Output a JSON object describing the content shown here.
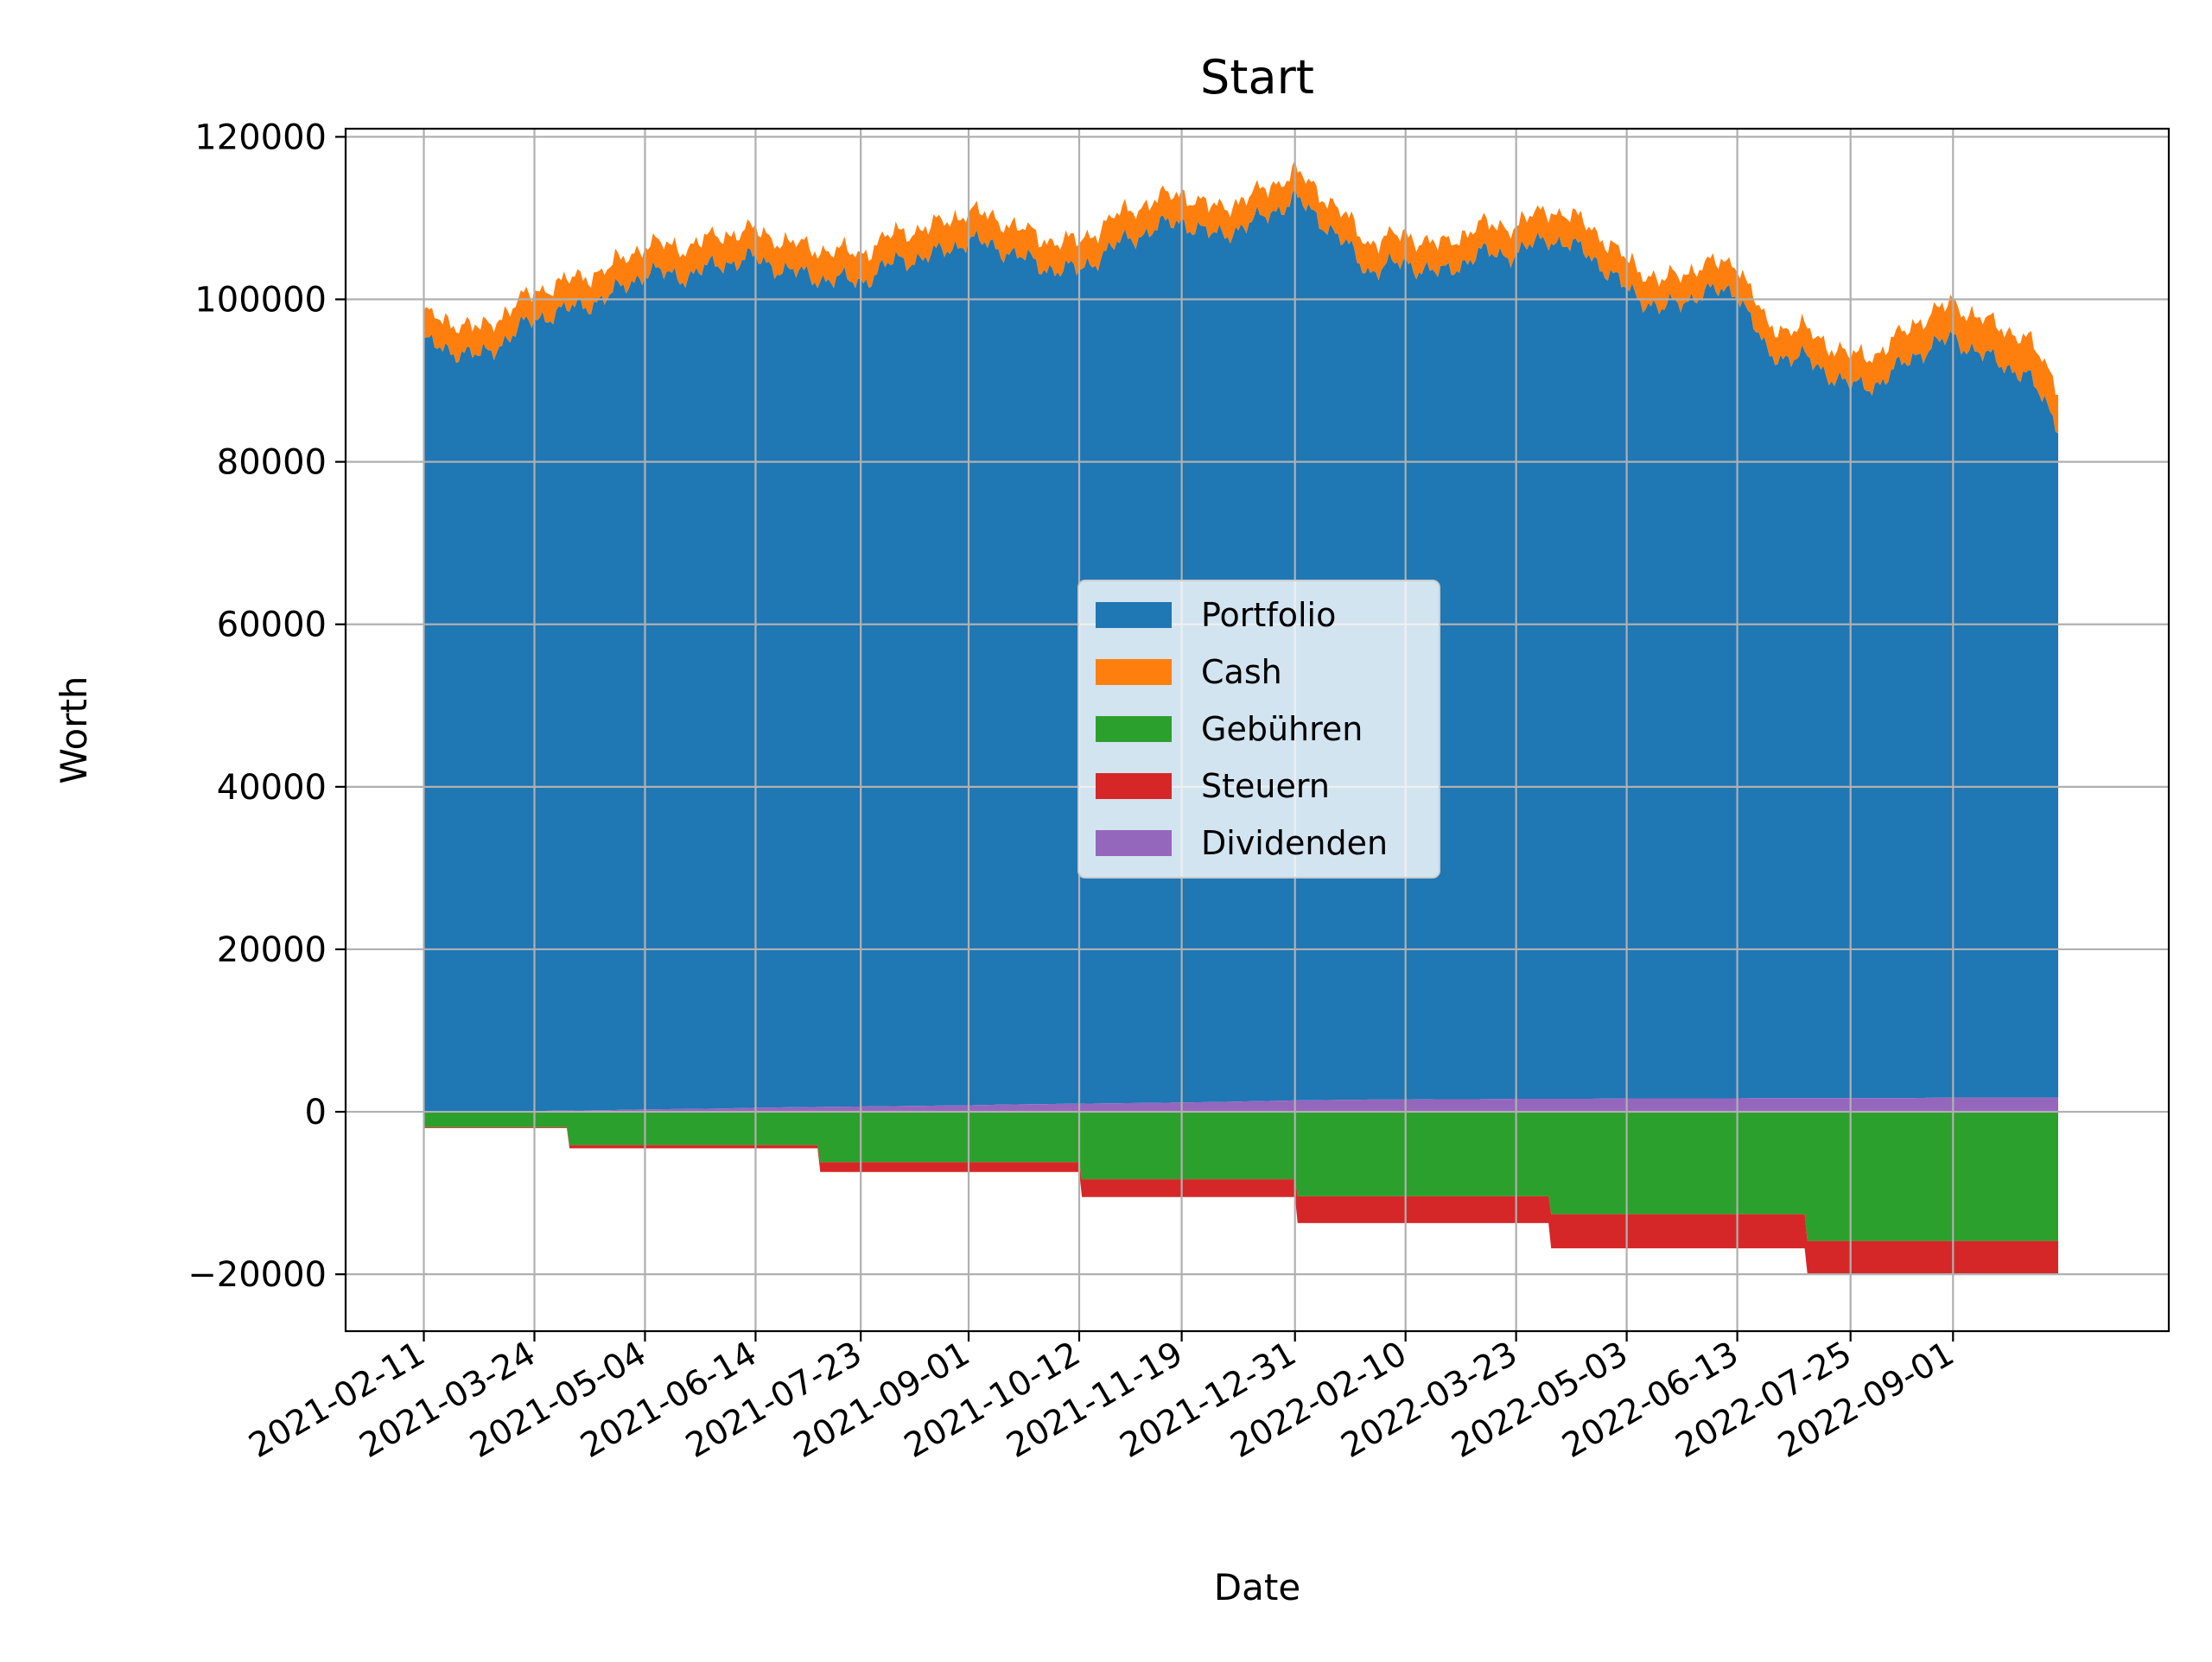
{
  "chart_data": {
    "type": "area",
    "stacked": true,
    "title": "Start",
    "xlabel": "Date",
    "ylabel": "Worth",
    "x_axis": "date",
    "xlim": [
      "2021-01-13",
      "2022-11-20"
    ],
    "ylim": [
      -27000,
      121000
    ],
    "x_ticks": [
      "2021-02-11",
      "2021-03-24",
      "2021-05-04",
      "2021-06-14",
      "2021-07-23",
      "2021-09-01",
      "2021-10-12",
      "2021-11-19",
      "2021-12-31",
      "2022-02-10",
      "2022-03-23",
      "2022-05-03",
      "2022-06-13",
      "2022-07-25",
      "2022-09-01"
    ],
    "y_ticks": [
      -20000,
      0,
      20000,
      40000,
      60000,
      80000,
      100000,
      120000
    ],
    "y_tick_labels": [
      "−20000",
      "0",
      "20000",
      "40000",
      "60000",
      "80000",
      "100000",
      "120000"
    ],
    "grid": true,
    "legend": {
      "placement": "center",
      "entries": [
        "Portfolio",
        "Cash",
        "Gebühren",
        "Steuern",
        "Dividenden"
      ]
    },
    "x": [
      "2021-02-11",
      "2021-02-25",
      "2021-03-04",
      "2021-03-24",
      "2021-04-05",
      "2021-04-20",
      "2021-05-04",
      "2021-05-20",
      "2021-06-01",
      "2021-06-14",
      "2021-06-25",
      "2021-07-07",
      "2021-07-23",
      "2021-08-05",
      "2021-08-18",
      "2021-09-01",
      "2021-09-16",
      "2021-09-28",
      "2021-10-12",
      "2021-10-25",
      "2021-11-08",
      "2021-11-19",
      "2021-12-01",
      "2021-12-15",
      "2021-12-31",
      "2022-01-14",
      "2022-01-27",
      "2022-02-10",
      "2022-02-23",
      "2022-03-09",
      "2022-03-23",
      "2022-04-04",
      "2022-04-19",
      "2022-05-03",
      "2022-05-16",
      "2022-05-30",
      "2022-06-13",
      "2022-06-24",
      "2022-07-08",
      "2022-07-25",
      "2022-08-05",
      "2022-08-18",
      "2022-09-01",
      "2022-09-14",
      "2022-09-28",
      "2022-10-10"
    ],
    "series": [
      {
        "name": "Portfolio",
        "color": "#1f77b4",
        "values": [
          94500,
          93500,
          92800,
          97500,
          98500,
          100000,
          103000,
          102500,
          104000,
          104500,
          103000,
          102000,
          101500,
          104000,
          104500,
          106500,
          105000,
          103000,
          102500,
          105500,
          107500,
          108500,
          106500,
          108000,
          111000,
          107000,
          102000,
          103000,
          101500,
          104000,
          104000,
          106000,
          104000,
          99500,
          97000,
          99000,
          99500,
          91500,
          91000,
          87500,
          88000,
          91500,
          93500,
          91000,
          89000,
          83000
        ]
      },
      {
        "name": "Cash",
        "color": "#ff7f0e",
        "values": [
          3500,
          3500,
          3400,
          3400,
          3600,
          3500,
          3500,
          3600,
          3600,
          3500,
          3500,
          3600,
          3500,
          3500,
          3600,
          3600,
          3500,
          3500,
          3500,
          3600,
          3500,
          3500,
          3400,
          3400,
          3300,
          3400,
          3500,
          3500,
          3500,
          3500,
          3500,
          3600,
          3600,
          3600,
          3500,
          3500,
          3500,
          3500,
          3600,
          3700,
          3800,
          4000,
          4300,
          4400,
          4600,
          4800
        ]
      },
      {
        "name": "Gebühren",
        "color": "#2ca02c",
        "values": [
          -1900,
          -1900,
          -1900,
          -1900,
          -4100,
          -4100,
          -4100,
          -4100,
          -4100,
          -4100,
          -4100,
          -6200,
          -6200,
          -6200,
          -6200,
          -6200,
          -6200,
          -6200,
          -8300,
          -8300,
          -8300,
          -8300,
          -8300,
          -8300,
          -10400,
          -10400,
          -10400,
          -10400,
          -10400,
          -10400,
          -10400,
          -12600,
          -12600,
          -12600,
          -12600,
          -12600,
          -12600,
          -12600,
          -15900,
          -15900,
          -15900,
          -15900,
          -15900,
          -15900,
          -15900,
          -15900
        ]
      },
      {
        "name": "Steuern",
        "color": "#d62728",
        "values": [
          -100,
          -100,
          -100,
          -100,
          -400,
          -400,
          -400,
          -400,
          -400,
          -400,
          -400,
          -1200,
          -1200,
          -1200,
          -1200,
          -1200,
          -1200,
          -1200,
          -2200,
          -2200,
          -2200,
          -2200,
          -2200,
          -2200,
          -3300,
          -3300,
          -3300,
          -3300,
          -3300,
          -3300,
          -3300,
          -4200,
          -4200,
          -4200,
          -4200,
          -4200,
          -4200,
          -4200,
          -4000,
          -4000,
          -4000,
          -4000,
          -4000,
          -4000,
          -4000,
          -4000
        ]
      },
      {
        "name": "Dividenden",
        "color": "#9467bd",
        "values": [
          0,
          0,
          50,
          100,
          150,
          200,
          300,
          350,
          400,
          500,
          550,
          600,
          650,
          700,
          750,
          800,
          900,
          950,
          1000,
          1050,
          1100,
          1150,
          1200,
          1300,
          1400,
          1450,
          1500,
          1500,
          1550,
          1550,
          1600,
          1600,
          1600,
          1650,
          1650,
          1650,
          1650,
          1700,
          1700,
          1700,
          1700,
          1700,
          1750,
          1750,
          1750,
          1750
        ]
      }
    ]
  }
}
